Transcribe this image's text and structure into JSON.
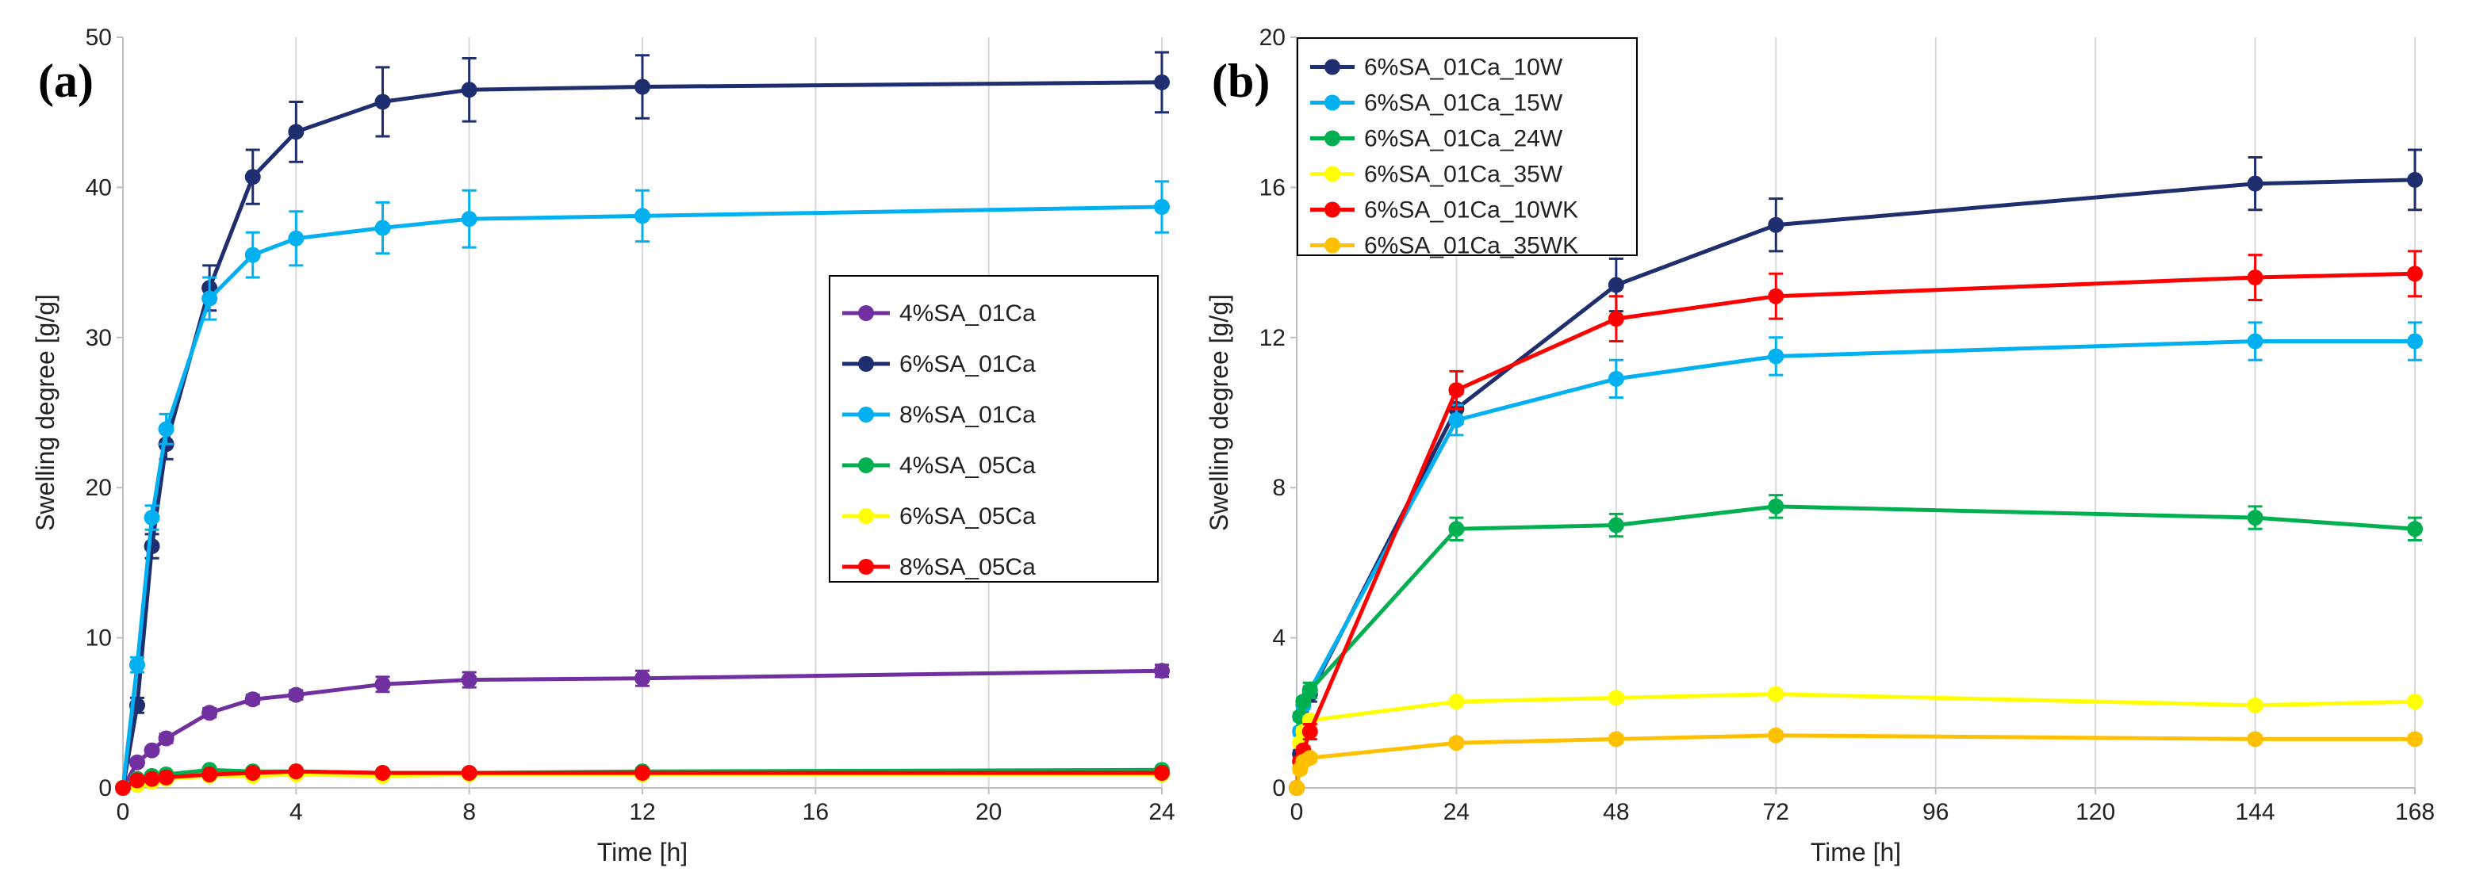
{
  "chart_data": [
    {
      "type": "line",
      "panel_label": "(a)",
      "xlabel": "Time [h]",
      "ylabel": "Swelling degree [g/g]",
      "xlim": [
        0,
        24
      ],
      "ylim": [
        0,
        50
      ],
      "xticks": [
        0,
        4,
        8,
        12,
        16,
        20,
        24
      ],
      "yticks": [
        0,
        10,
        20,
        30,
        40,
        50
      ],
      "grid": "vertical",
      "legend_position": "center-right",
      "series": [
        {
          "name": "4%SA_01Ca",
          "color": "#7030a0",
          "x": [
            0,
            0.33,
            0.67,
            1,
            2,
            3,
            4,
            6,
            8,
            12,
            24
          ],
          "y": [
            0,
            1.7,
            2.5,
            3.3,
            5.0,
            5.9,
            6.2,
            6.9,
            7.2,
            7.3,
            7.8
          ],
          "err": [
            0,
            0.2,
            0.2,
            0.3,
            0.3,
            0.3,
            0.3,
            0.5,
            0.5,
            0.5,
            0.4
          ]
        },
        {
          "name": "6%SA_01Ca",
          "color": "#1f2e6e",
          "x": [
            0,
            0.33,
            0.67,
            1,
            2,
            3,
            4,
            6,
            8,
            12,
            24
          ],
          "y": [
            0,
            5.5,
            16.1,
            22.9,
            33.3,
            40.7,
            43.7,
            45.7,
            46.5,
            46.7,
            47.0
          ],
          "err": [
            0,
            0.5,
            0.8,
            1.0,
            1.5,
            1.8,
            2.0,
            2.3,
            2.1,
            2.1,
            2.0
          ]
        },
        {
          "name": "8%SA_01Ca",
          "color": "#00b0f0",
          "x": [
            0,
            0.33,
            0.67,
            1,
            2,
            3,
            4,
            6,
            8,
            12,
            24
          ],
          "y": [
            0,
            8.2,
            18.0,
            23.9,
            32.6,
            35.5,
            36.6,
            37.3,
            37.9,
            38.1,
            38.7
          ],
          "err": [
            0,
            0.5,
            0.8,
            1.0,
            1.4,
            1.5,
            1.8,
            1.7,
            1.9,
            1.7,
            1.7
          ]
        },
        {
          "name": "4%SA_05Ca",
          "color": "#00b050",
          "x": [
            0,
            0.33,
            0.67,
            1,
            2,
            3,
            4,
            6,
            8,
            12,
            24
          ],
          "y": [
            0,
            0.6,
            0.8,
            0.9,
            1.2,
            1.1,
            1.1,
            1.0,
            1.0,
            1.1,
            1.2
          ],
          "err": [
            0,
            0.1,
            0.1,
            0.1,
            0.1,
            0.1,
            0.1,
            0.1,
            0.1,
            0.1,
            0.1
          ]
        },
        {
          "name": "6%SA_05Ca",
          "color": "#ffff00",
          "x": [
            0,
            0.33,
            0.67,
            1,
            2,
            3,
            4,
            6,
            8,
            12,
            24
          ],
          "y": [
            0,
            0.2,
            0.4,
            0.6,
            0.8,
            0.8,
            0.9,
            0.8,
            0.9,
            0.9,
            0.9
          ],
          "err": [
            0,
            0.1,
            0.1,
            0.1,
            0.1,
            0.1,
            0.1,
            0.1,
            0.1,
            0.1,
            0.1
          ]
        },
        {
          "name": "8%SA_05Ca",
          "color": "#ff0000",
          "x": [
            0,
            0.33,
            0.67,
            1,
            2,
            3,
            4,
            6,
            8,
            12,
            24
          ],
          "y": [
            0,
            0.5,
            0.6,
            0.7,
            0.9,
            1.0,
            1.1,
            1.0,
            1.0,
            1.0,
            1.0
          ],
          "err": [
            0,
            0.1,
            0.1,
            0.1,
            0.1,
            0.1,
            0.1,
            0.1,
            0.1,
            0.1,
            0.1
          ]
        }
      ]
    },
    {
      "type": "line",
      "panel_label": "(b)",
      "xlabel": "Time [h]",
      "ylabel": "Swelling degree [g/g]",
      "xlim": [
        0,
        168
      ],
      "ylim": [
        0,
        20
      ],
      "xticks": [
        0,
        24,
        48,
        72,
        96,
        120,
        144,
        168
      ],
      "yticks": [
        0,
        4,
        8,
        12,
        16,
        20
      ],
      "grid": "vertical",
      "legend_position": "top-left",
      "series": [
        {
          "name": "6%SA_01Ca_10W",
          "color": "#1f2e6e",
          "x": [
            0,
            0.5,
            1,
            2,
            24,
            48,
            72,
            144,
            168
          ],
          "y": [
            0,
            0.9,
            1.5,
            2.5,
            10.1,
            13.4,
            15.0,
            16.1,
            16.2
          ],
          "err": [
            0,
            0.1,
            0.1,
            0.2,
            0.4,
            0.7,
            0.7,
            0.7,
            0.8
          ]
        },
        {
          "name": "6%SA_01Ca_15W",
          "color": "#00b0f0",
          "x": [
            0,
            0.5,
            1,
            2,
            24,
            48,
            72,
            144,
            168
          ],
          "y": [
            0,
            1.5,
            2.2,
            2.6,
            9.8,
            10.9,
            11.5,
            11.9,
            11.9
          ],
          "err": [
            0,
            0.1,
            0.1,
            0.2,
            0.4,
            0.5,
            0.5,
            0.5,
            0.5
          ]
        },
        {
          "name": "6%SA_01Ca_24W",
          "color": "#00b050",
          "x": [
            0,
            0.5,
            1,
            2,
            24,
            48,
            72,
            144,
            168
          ],
          "y": [
            0,
            1.9,
            2.3,
            2.6,
            6.9,
            7.0,
            7.5,
            7.2,
            6.9
          ],
          "err": [
            0,
            0.1,
            0.1,
            0.2,
            0.3,
            0.3,
            0.3,
            0.3,
            0.3
          ]
        },
        {
          "name": "6%SA_01Ca_35W",
          "color": "#ffff00",
          "x": [
            0,
            0.5,
            1,
            2,
            24,
            48,
            72,
            144,
            168
          ],
          "y": [
            0,
            1.2,
            1.5,
            1.8,
            2.3,
            2.4,
            2.5,
            2.2,
            2.3
          ],
          "err": [
            0,
            0.1,
            0.1,
            0.1,
            0.1,
            0.1,
            0.1,
            0.1,
            0.1
          ]
        },
        {
          "name": "6%SA_01Ca_10WK",
          "color": "#ff0000",
          "x": [
            0,
            0.5,
            1,
            2,
            24,
            48,
            72,
            144,
            168
          ],
          "y": [
            0,
            0.7,
            1.0,
            1.5,
            10.6,
            12.5,
            13.1,
            13.6,
            13.7
          ],
          "err": [
            0,
            0.1,
            0.1,
            0.2,
            0.5,
            0.6,
            0.6,
            0.6,
            0.6
          ]
        },
        {
          "name": "6%SA_01Ca_35WK",
          "color": "#ffc000",
          "x": [
            0,
            0.5,
            1,
            2,
            24,
            48,
            72,
            144,
            168
          ],
          "y": [
            0,
            0.5,
            0.7,
            0.8,
            1.2,
            1.3,
            1.4,
            1.3,
            1.3
          ],
          "err": [
            0,
            0.1,
            0.1,
            0.1,
            0.1,
            0.1,
            0.1,
            0.1,
            0.1
          ]
        }
      ]
    }
  ]
}
